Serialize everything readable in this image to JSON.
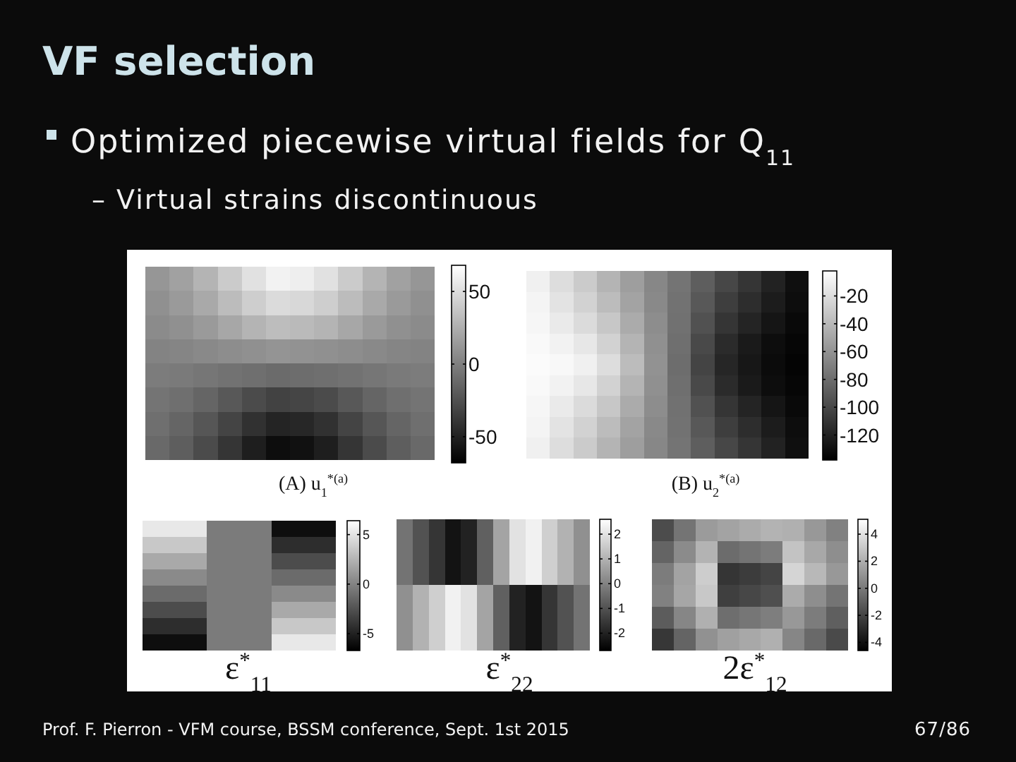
{
  "chart_data": [
    {
      "type": "heatmap",
      "title": "VF selection",
      "subtitle": "Optimized piecewise virtual fields for Q$_{11}$",
      "annotations": [
        "– Virtual strains discontinuous"
      ],
      "xlabel": "(A) u$_{1}$$^{*(a)}$",
      "categories": [
        null,
        null,
        null,
        null,
        null,
        null,
        null,
        null,
        null,
        null,
        null,
        null
      ],
      "y_categories": [
        null,
        null,
        null,
        null,
        null,
        null,
        null,
        null
      ],
      "cells": [
        [
          12,
          18,
          28,
          40,
          52,
          61,
          59,
          52,
          40,
          28,
          18,
          12
        ],
        [
          9,
          14,
          22,
          32,
          42,
          49,
          47,
          42,
          32,
          22,
          14,
          9
        ],
        [
          6,
          9,
          14,
          21,
          28,
          33,
          31,
          28,
          21,
          14,
          9,
          6
        ],
        [
          2,
          3,
          5,
          7,
          9,
          11,
          10,
          9,
          7,
          5,
          3,
          2
        ],
        [
          -2,
          -3,
          -5,
          -7,
          -9,
          -11,
          -10,
          -9,
          -7,
          -5,
          -3,
          -2
        ],
        [
          -6,
          -9,
          -14,
          -21,
          -28,
          -33,
          -31,
          -28,
          -21,
          -14,
          -9,
          -6
        ],
        [
          -9,
          -14,
          -22,
          -32,
          -42,
          -49,
          -47,
          -42,
          -32,
          -22,
          -14,
          -9
        ],
        [
          -12,
          -18,
          -28,
          -40,
          -52,
          -61,
          -59,
          -52,
          -40,
          -28,
          -18,
          -12
        ]
      ],
      "clim": [
        -68,
        68
      ],
      "cticks": [
        -50,
        0,
        50
      ]
    },
    {
      "type": "heatmap",
      "xlabel": "(B) u$_{2}$$^{*(a)}$",
      "categories": [
        null,
        null,
        null,
        null,
        null,
        null,
        null,
        null,
        null,
        null,
        null,
        null
      ],
      "y_categories": [
        null,
        null,
        null,
        null,
        null,
        null,
        null,
        null,
        null
      ],
      "cells": [
        [
          -10,
          -20,
          -30,
          -42,
          -54,
          -66,
          -76,
          -88,
          -100,
          -110,
          -120,
          -130
        ],
        [
          -8,
          -17,
          -26,
          -38,
          -51,
          -65,
          -77,
          -91,
          -105,
          -114,
          -123,
          -131
        ],
        [
          -7,
          -13,
          -21,
          -32,
          -47,
          -63,
          -78,
          -95,
          -110,
          -119,
          -127,
          -133
        ],
        [
          -5,
          -9,
          -15,
          -26,
          -42,
          -61,
          -79,
          -99,
          -115,
          -124,
          -131,
          -135
        ],
        [
          -4,
          -6,
          -10,
          -20,
          -38,
          -60,
          -80,
          -102,
          -118,
          -126,
          -132,
          -136
        ],
        [
          -5,
          -9,
          -15,
          -26,
          -42,
          -61,
          -79,
          -99,
          -115,
          -124,
          -131,
          -135
        ],
        [
          -7,
          -13,
          -21,
          -32,
          -47,
          -63,
          -78,
          -95,
          -110,
          -119,
          -127,
          -133
        ],
        [
          -8,
          -17,
          -26,
          -38,
          -51,
          -65,
          -77,
          -91,
          -105,
          -114,
          -123,
          -131
        ],
        [
          -10,
          -20,
          -30,
          -42,
          -54,
          -66,
          -76,
          -88,
          -100,
          -110,
          -120,
          -130
        ]
      ],
      "clim": [
        -138,
        -2
      ],
      "cticks": [
        -120,
        -100,
        -80,
        -60,
        -40,
        -20
      ]
    },
    {
      "type": "heatmap",
      "xlabel": "ε$^{*}$$_{11}$",
      "categories": [
        null,
        null,
        null
      ],
      "y_categories": [
        null,
        null,
        null,
        null,
        null,
        null,
        null,
        null
      ],
      "cells": [
        [
          5.2,
          -0.4,
          -6.0
        ],
        [
          3.6,
          -0.4,
          -4.4
        ],
        [
          2.0,
          -0.4,
          -2.8
        ],
        [
          0.4,
          -0.4,
          -1.2
        ],
        [
          -1.2,
          -0.4,
          0.4
        ],
        [
          -2.8,
          -0.4,
          2.0
        ],
        [
          -4.4,
          -0.4,
          3.6
        ],
        [
          -6.0,
          -0.4,
          5.2
        ]
      ],
      "clim": [
        -6.7,
        6.4
      ],
      "cticks": [
        -5,
        0,
        5
      ]
    },
    {
      "type": "heatmap",
      "xlabel": "ε$^{*}$$_{22}$",
      "categories": [
        null,
        null,
        null,
        null,
        null,
        null,
        null,
        null,
        null,
        null,
        null,
        null
      ],
      "y_categories": [
        null,
        null
      ],
      "cells": [
        [
          -0.3,
          -1.0,
          -1.6,
          -2.3,
          -2.0,
          -0.7,
          0.7,
          2.0,
          2.3,
          1.6,
          1.0,
          0.3
        ],
        [
          0.3,
          1.0,
          1.6,
          2.3,
          2.0,
          0.7,
          -0.7,
          -2.0,
          -2.3,
          -1.6,
          -1.0,
          -0.3
        ]
      ],
      "clim": [
        -2.7,
        2.6
      ],
      "cticks": [
        -2,
        -1,
        0,
        1,
        2
      ]
    },
    {
      "type": "heatmap",
      "xlabel": "2ε$^{*}$$_{12}$",
      "annotations": [
        "Prof. F. Pierron - VFM course, BSSM conference, Sept. 1st 2015",
        "67/86"
      ],
      "categories": [
        null,
        null,
        null,
        null,
        null,
        null,
        null,
        null,
        null
      ],
      "y_categories": [
        null,
        null,
        null,
        null,
        null,
        null
      ],
      "cells": [
        [
          -1.7,
          -0.2,
          1.3,
          1.6,
          1.9,
          2.2,
          2.1,
          1.2,
          0.3
        ],
        [
          -0.8,
          0.7,
          2.2,
          -0.5,
          -0.2,
          0.1,
          2.8,
          1.8,
          0.8
        ],
        [
          0.1,
          1.6,
          3.2,
          -2.6,
          -2.3,
          -2.0,
          3.5,
          2.4,
          1.2
        ],
        [
          0.3,
          1.7,
          3.0,
          -2.2,
          -1.9,
          -1.6,
          1.9,
          0.8,
          -0.2
        ],
        [
          -1.1,
          0.5,
          2.1,
          -0.4,
          -0.1,
          0.2,
          1.2,
          0.1,
          -1.0
        ],
        [
          -2.5,
          -0.8,
          0.9,
          1.5,
          1.8,
          2.1,
          0.5,
          -0.6,
          -1.8
        ]
      ],
      "clim": [
        -4.6,
        5.1
      ],
      "cticks": [
        -4,
        -2,
        0,
        2,
        4
      ]
    }
  ]
}
